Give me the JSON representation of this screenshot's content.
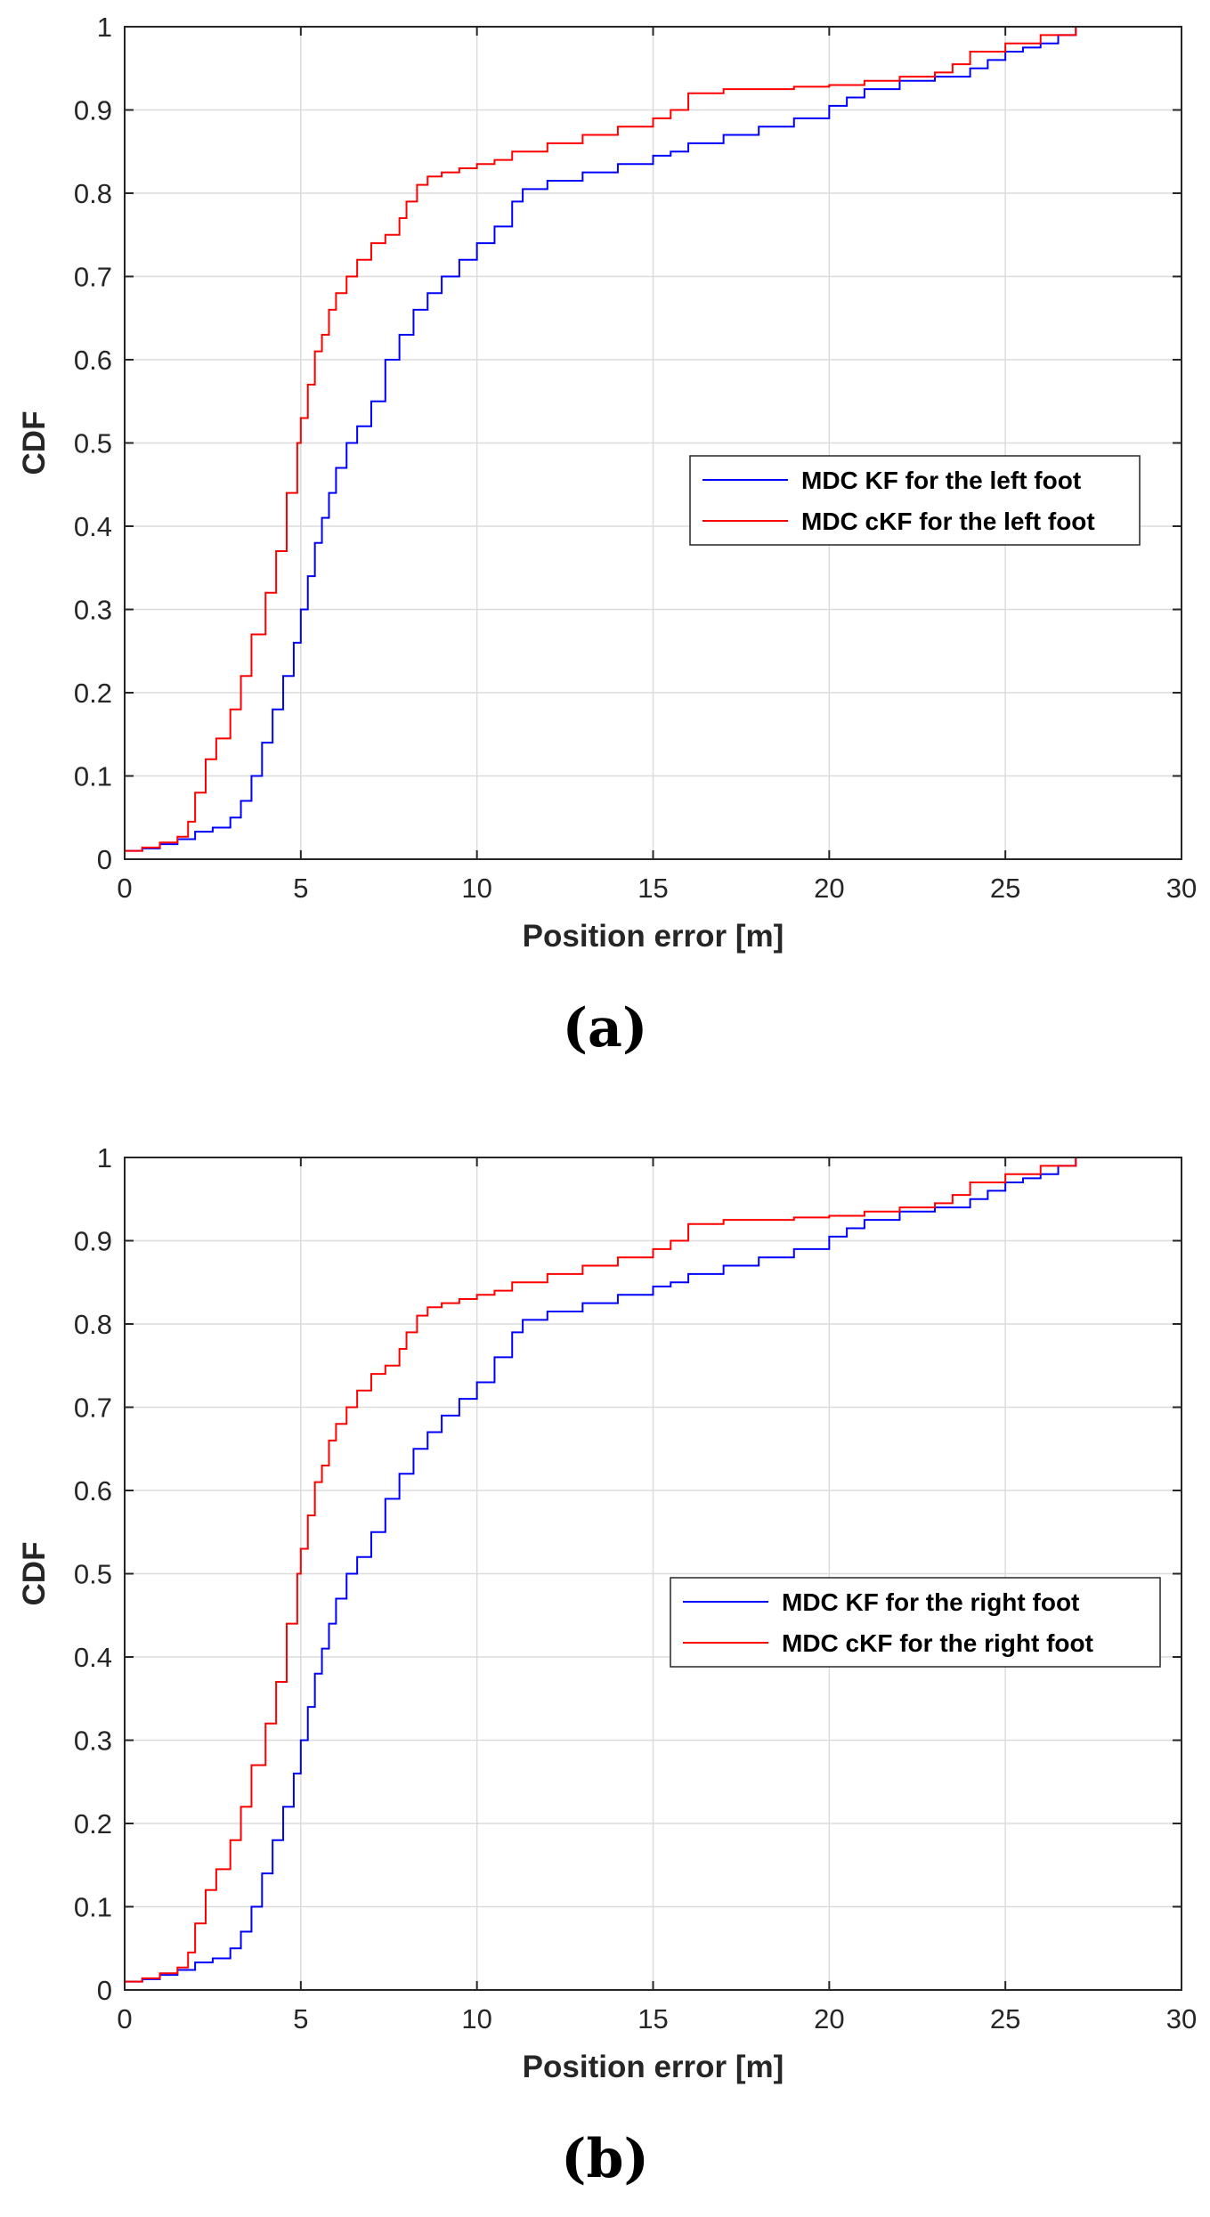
{
  "figure": {
    "panels": [
      {
        "label": "(a)"
      },
      {
        "label": "(b)"
      }
    ]
  },
  "chart_data": [
    {
      "type": "line",
      "panel": "(a)",
      "xlabel": "Position error [m]",
      "ylabel": "CDF",
      "xlim": [
        0,
        30
      ],
      "ylim": [
        0,
        1
      ],
      "xticks": [
        0,
        5,
        10,
        15,
        20,
        25,
        30
      ],
      "yticks": [
        0,
        0.1,
        0.2,
        0.3,
        0.4,
        0.5,
        0.6,
        0.7,
        0.8,
        0.9,
        1
      ],
      "xtick_labels": [
        "0",
        "5",
        "10",
        "15",
        "20",
        "25",
        "30"
      ],
      "ytick_labels": [
        "0",
        "0.1",
        "0.2",
        "0.3",
        "0.4",
        "0.5",
        "0.6",
        "0.7",
        "0.8",
        "0.9",
        "1"
      ],
      "grid": true,
      "legend_position": "middle-right",
      "series": [
        {
          "name": "MDC KF for the left foot",
          "color": "#0000ff",
          "x": [
            0,
            0.5,
            1.0,
            1.5,
            2.0,
            2.5,
            3.0,
            3.3,
            3.6,
            3.9,
            4.2,
            4.5,
            4.8,
            5.0,
            5.2,
            5.4,
            5.6,
            5.8,
            6.0,
            6.3,
            6.6,
            7.0,
            7.4,
            7.8,
            8.2,
            8.6,
            9.0,
            9.5,
            10.0,
            10.5,
            11.0,
            11.3,
            12.0,
            13.0,
            14.0,
            15.0,
            15.5,
            16.0,
            17.0,
            18.0,
            19.0,
            20.0,
            20.5,
            21.0,
            22.0,
            23.0,
            24.0,
            24.5,
            25.0,
            25.5,
            26.0,
            26.5,
            27.0
          ],
          "y": [
            0.01,
            0.013,
            0.018,
            0.024,
            0.033,
            0.038,
            0.05,
            0.07,
            0.1,
            0.14,
            0.18,
            0.22,
            0.26,
            0.3,
            0.34,
            0.38,
            0.41,
            0.44,
            0.47,
            0.5,
            0.52,
            0.55,
            0.6,
            0.63,
            0.66,
            0.68,
            0.7,
            0.72,
            0.74,
            0.76,
            0.79,
            0.805,
            0.815,
            0.825,
            0.835,
            0.845,
            0.85,
            0.86,
            0.87,
            0.88,
            0.89,
            0.905,
            0.915,
            0.925,
            0.935,
            0.94,
            0.95,
            0.96,
            0.97,
            0.975,
            0.98,
            0.99,
            1.0
          ]
        },
        {
          "name": "MDC cKF for the left foot",
          "color": "#ff0000",
          "x": [
            0,
            0.5,
            1.0,
            1.5,
            1.8,
            2.0,
            2.3,
            2.6,
            3.0,
            3.3,
            3.6,
            4.0,
            4.3,
            4.6,
            4.9,
            5.0,
            5.2,
            5.4,
            5.6,
            5.8,
            6.0,
            6.3,
            6.6,
            7.0,
            7.4,
            7.8,
            8.0,
            8.3,
            8.6,
            9.0,
            9.5,
            10.0,
            10.5,
            11.0,
            12.0,
            13.0,
            14.0,
            15.0,
            15.5,
            16.0,
            17.0,
            18.0,
            19.0,
            20.0,
            21.0,
            22.0,
            23.0,
            23.5,
            24.0,
            25.0,
            26.0,
            27.0
          ],
          "y": [
            0.01,
            0.014,
            0.02,
            0.027,
            0.045,
            0.08,
            0.12,
            0.145,
            0.18,
            0.22,
            0.27,
            0.32,
            0.37,
            0.44,
            0.5,
            0.53,
            0.57,
            0.61,
            0.63,
            0.66,
            0.68,
            0.7,
            0.72,
            0.74,
            0.75,
            0.77,
            0.79,
            0.81,
            0.82,
            0.825,
            0.83,
            0.835,
            0.84,
            0.85,
            0.86,
            0.87,
            0.88,
            0.89,
            0.9,
            0.92,
            0.925,
            0.925,
            0.928,
            0.93,
            0.935,
            0.94,
            0.945,
            0.955,
            0.97,
            0.98,
            0.99,
            1.0
          ]
        }
      ]
    },
    {
      "type": "line",
      "panel": "(b)",
      "xlabel": "Position error [m]",
      "ylabel": "CDF",
      "xlim": [
        0,
        30
      ],
      "ylim": [
        0,
        1
      ],
      "xticks": [
        0,
        5,
        10,
        15,
        20,
        25,
        30
      ],
      "yticks": [
        0,
        0.1,
        0.2,
        0.3,
        0.4,
        0.5,
        0.6,
        0.7,
        0.8,
        0.9,
        1
      ],
      "xtick_labels": [
        "0",
        "5",
        "10",
        "15",
        "20",
        "25",
        "30"
      ],
      "ytick_labels": [
        "0",
        "0.1",
        "0.2",
        "0.3",
        "0.4",
        "0.5",
        "0.6",
        "0.7",
        "0.8",
        "0.9",
        "1"
      ],
      "grid": true,
      "legend_position": "lower-right",
      "series": [
        {
          "name": "MDC KF for the right foot",
          "color": "#0000ff",
          "x": [
            0,
            0.5,
            1.0,
            1.5,
            2.0,
            2.5,
            3.0,
            3.3,
            3.6,
            3.9,
            4.2,
            4.5,
            4.8,
            5.0,
            5.2,
            5.4,
            5.6,
            5.8,
            6.0,
            6.3,
            6.6,
            7.0,
            7.4,
            7.8,
            8.2,
            8.6,
            9.0,
            9.5,
            10.0,
            10.5,
            11.0,
            11.3,
            12.0,
            13.0,
            14.0,
            15.0,
            15.5,
            16.0,
            17.0,
            18.0,
            19.0,
            20.0,
            20.5,
            21.0,
            22.0,
            23.0,
            24.0,
            24.5,
            25.0,
            25.5,
            26.0,
            26.5,
            27.0
          ],
          "y": [
            0.01,
            0.013,
            0.018,
            0.024,
            0.033,
            0.038,
            0.05,
            0.07,
            0.1,
            0.14,
            0.18,
            0.22,
            0.26,
            0.3,
            0.34,
            0.38,
            0.41,
            0.44,
            0.47,
            0.5,
            0.52,
            0.55,
            0.59,
            0.62,
            0.65,
            0.67,
            0.69,
            0.71,
            0.73,
            0.76,
            0.79,
            0.805,
            0.815,
            0.825,
            0.835,
            0.845,
            0.85,
            0.86,
            0.87,
            0.88,
            0.89,
            0.905,
            0.915,
            0.925,
            0.935,
            0.94,
            0.95,
            0.96,
            0.97,
            0.975,
            0.98,
            0.99,
            1.0
          ]
        },
        {
          "name": "MDC cKF for the right foot",
          "color": "#ff0000",
          "x": [
            0,
            0.5,
            1.0,
            1.5,
            1.8,
            2.0,
            2.3,
            2.6,
            3.0,
            3.3,
            3.6,
            4.0,
            4.3,
            4.6,
            4.9,
            5.0,
            5.2,
            5.4,
            5.6,
            5.8,
            6.0,
            6.3,
            6.6,
            7.0,
            7.4,
            7.8,
            8.0,
            8.3,
            8.6,
            9.0,
            9.5,
            10.0,
            10.5,
            11.0,
            12.0,
            13.0,
            14.0,
            15.0,
            15.5,
            16.0,
            17.0,
            18.0,
            19.0,
            20.0,
            21.0,
            22.0,
            23.0,
            23.5,
            24.0,
            25.0,
            26.0,
            27.0
          ],
          "y": [
            0.01,
            0.014,
            0.02,
            0.027,
            0.045,
            0.08,
            0.12,
            0.145,
            0.18,
            0.22,
            0.27,
            0.32,
            0.37,
            0.44,
            0.5,
            0.53,
            0.57,
            0.61,
            0.63,
            0.66,
            0.68,
            0.7,
            0.72,
            0.74,
            0.75,
            0.77,
            0.79,
            0.81,
            0.82,
            0.825,
            0.83,
            0.835,
            0.84,
            0.85,
            0.86,
            0.87,
            0.88,
            0.89,
            0.9,
            0.92,
            0.925,
            0.925,
            0.928,
            0.93,
            0.935,
            0.94,
            0.945,
            0.955,
            0.97,
            0.98,
            0.99,
            1.0
          ]
        }
      ]
    }
  ]
}
